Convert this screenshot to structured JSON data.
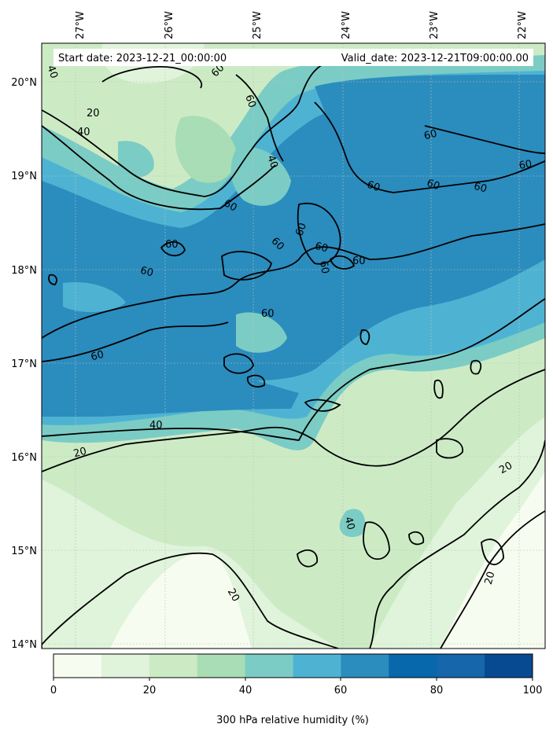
{
  "map": {
    "start_date": "Start date: 2023-12-21_00:00:00",
    "valid_date": "Valid_date: 2023-12-21T09:00:00.00",
    "lon_labels": [
      "27°W",
      "26°W",
      "25°W",
      "24°W",
      "23°W",
      "22°W"
    ],
    "lat_labels": [
      "20°N",
      "19°N",
      "18°N",
      "17°N",
      "16°N",
      "15°N",
      "14°N"
    ],
    "contour_levels": [
      "20",
      "40",
      "60"
    ],
    "contour_labels": [
      {
        "text": "40"
      },
      {
        "text": "60"
      },
      {
        "text": "60"
      },
      {
        "text": "20"
      },
      {
        "text": "40"
      },
      {
        "text": "40"
      },
      {
        "text": "60"
      },
      {
        "text": "60"
      },
      {
        "text": "60"
      },
      {
        "text": "60"
      },
      {
        "text": "60"
      },
      {
        "text": "60"
      },
      {
        "text": "60"
      },
      {
        "text": "60"
      },
      {
        "text": "60"
      },
      {
        "text": "60"
      },
      {
        "text": "60"
      },
      {
        "text": "60"
      },
      {
        "text": "60"
      },
      {
        "text": "60"
      },
      {
        "text": "60"
      },
      {
        "text": "40"
      },
      {
        "text": "20"
      },
      {
        "text": "40"
      },
      {
        "text": "20"
      },
      {
        "text": "20"
      },
      {
        "text": "20"
      }
    ]
  },
  "colorbar": {
    "title": "300 hPa relative humidity (%)",
    "ticks": [
      "0",
      "20",
      "40",
      "60",
      "80",
      "100"
    ],
    "colors": [
      "#f7fcf0",
      "#e0f3db",
      "#ccebc5",
      "#a8ddb5",
      "#7bccc4",
      "#4eb3d3",
      "#2b8cbe",
      "#0868ac",
      "#1566ab",
      "#084a91"
    ]
  }
}
